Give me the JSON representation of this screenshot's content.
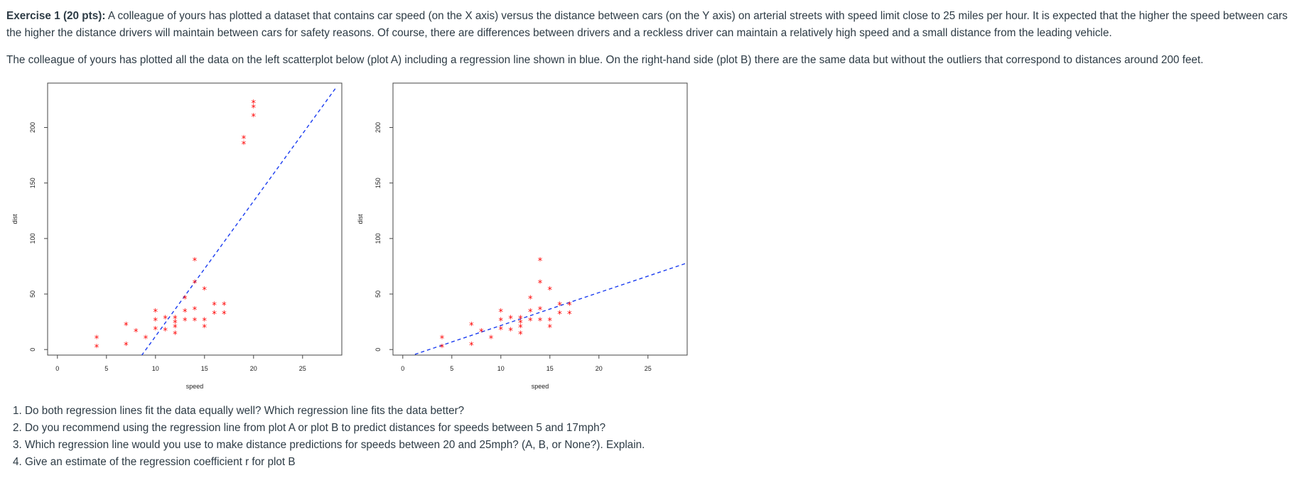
{
  "exercise": {
    "title": "Exercise 1 (20 pts):",
    "intro": " A colleague of yours has plotted a dataset that contains car speed (on the X axis) versus the distance between cars (on the Y axis) on arterial streets with speed limit close to 25 miles per hour. It is expected that the higher the speed between cars the higher the distance drivers will maintain between cars for safety reasons. Of course, there are differences between drivers and a reckless driver can maintain a relatively high speed and a small distance from the leading vehicle.",
    "paragraph2": "The colleague of yours has plotted all the data on the left scatterplot below (plot A) including a regression line shown in blue. On the right-hand side (plot B) there are the same data but without the outliers that correspond to distances around 200 feet."
  },
  "questions": [
    "1. Do both regression lines fit the data equally well? Which regression line fits the data better?",
    "2. Do you recommend using the regression line from plot A or plot B to predict distances for speeds between 5 and 17mph?",
    "3. Which regression line would you use to make distance predictions for speeds between 20 and 25mph? (A, B, or None?). Explain.",
    "4. Give an estimate of the regression coefficient r for plot B"
  ],
  "chart_data": [
    {
      "type": "scatter",
      "title": "",
      "xlabel": "speed",
      "ylabel": "dist",
      "xlim": [
        -1,
        29
      ],
      "ylim": [
        -5,
        240
      ],
      "xticks": [
        "0",
        "5",
        "10",
        "15",
        "20",
        "25"
      ],
      "yticks": [
        "0",
        "50",
        "100",
        "150",
        "200"
      ],
      "xtick_values": [
        0,
        5,
        10,
        15,
        20,
        25
      ],
      "ytick_values": [
        0,
        50,
        100,
        150,
        200
      ],
      "point_color": "#ff0000",
      "line_color": "#1a3cf0",
      "marker": "*",
      "points": [
        {
          "x": 4,
          "y": 2
        },
        {
          "x": 4,
          "y": 10
        },
        {
          "x": 7,
          "y": 4
        },
        {
          "x": 7,
          "y": 22
        },
        {
          "x": 8,
          "y": 16
        },
        {
          "x": 9,
          "y": 10
        },
        {
          "x": 10,
          "y": 18
        },
        {
          "x": 10,
          "y": 26
        },
        {
          "x": 10,
          "y": 34
        },
        {
          "x": 11,
          "y": 17
        },
        {
          "x": 11,
          "y": 28
        },
        {
          "x": 12,
          "y": 14
        },
        {
          "x": 12,
          "y": 20
        },
        {
          "x": 12,
          "y": 24
        },
        {
          "x": 12,
          "y": 28
        },
        {
          "x": 13,
          "y": 26
        },
        {
          "x": 13,
          "y": 34
        },
        {
          "x": 13,
          "y": 46
        },
        {
          "x": 14,
          "y": 26
        },
        {
          "x": 14,
          "y": 36
        },
        {
          "x": 14,
          "y": 60
        },
        {
          "x": 14,
          "y": 80
        },
        {
          "x": 15,
          "y": 20
        },
        {
          "x": 15,
          "y": 26
        },
        {
          "x": 15,
          "y": 54
        },
        {
          "x": 16,
          "y": 32
        },
        {
          "x": 16,
          "y": 40
        },
        {
          "x": 17,
          "y": 32
        },
        {
          "x": 17,
          "y": 40
        },
        {
          "x": 19,
          "y": 185
        },
        {
          "x": 19,
          "y": 190
        },
        {
          "x": 20,
          "y": 210
        },
        {
          "x": 20,
          "y": 218
        },
        {
          "x": 20,
          "y": 222
        }
      ],
      "regression_line": {
        "x": [
          8.2,
          28.5
        ],
        "y": [
          -10,
          237
        ]
      }
    },
    {
      "type": "scatter",
      "title": "",
      "xlabel": "speed",
      "ylabel": "dist",
      "xlim": [
        -1,
        29
      ],
      "ylim": [
        -5,
        240
      ],
      "xticks": [
        "0",
        "5",
        "10",
        "15",
        "20",
        "25"
      ],
      "yticks": [
        "0",
        "50",
        "100",
        "150",
        "200"
      ],
      "xtick_values": [
        0,
        5,
        10,
        15,
        20,
        25
      ],
      "ytick_values": [
        0,
        50,
        100,
        150,
        200
      ],
      "point_color": "#ff0000",
      "line_color": "#1a3cf0",
      "marker": "*",
      "points": [
        {
          "x": 4,
          "y": 2
        },
        {
          "x": 4,
          "y": 10
        },
        {
          "x": 7,
          "y": 4
        },
        {
          "x": 7,
          "y": 22
        },
        {
          "x": 8,
          "y": 16
        },
        {
          "x": 9,
          "y": 10
        },
        {
          "x": 10,
          "y": 18
        },
        {
          "x": 10,
          "y": 26
        },
        {
          "x": 10,
          "y": 34
        },
        {
          "x": 11,
          "y": 17
        },
        {
          "x": 11,
          "y": 28
        },
        {
          "x": 12,
          "y": 14
        },
        {
          "x": 12,
          "y": 20
        },
        {
          "x": 12,
          "y": 24
        },
        {
          "x": 12,
          "y": 28
        },
        {
          "x": 13,
          "y": 26
        },
        {
          "x": 13,
          "y": 34
        },
        {
          "x": 13,
          "y": 46
        },
        {
          "x": 14,
          "y": 26
        },
        {
          "x": 14,
          "y": 36
        },
        {
          "x": 14,
          "y": 60
        },
        {
          "x": 14,
          "y": 80
        },
        {
          "x": 15,
          "y": 20
        },
        {
          "x": 15,
          "y": 26
        },
        {
          "x": 15,
          "y": 54
        },
        {
          "x": 16,
          "y": 32
        },
        {
          "x": 16,
          "y": 40
        },
        {
          "x": 17,
          "y": 32
        },
        {
          "x": 17,
          "y": 40
        }
      ],
      "regression_line": {
        "x": [
          0,
          29
        ],
        "y": [
          -8,
          78
        ]
      }
    }
  ]
}
